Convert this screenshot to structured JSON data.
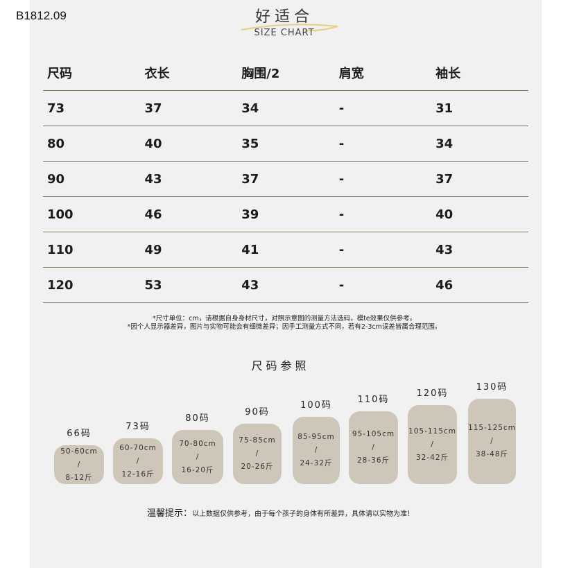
{
  "product_code": "B1812.09",
  "header": {
    "title_cn": "好适合",
    "title_en": "SIZE CHART",
    "accent_color": "#e8cf86"
  },
  "table": {
    "columns": [
      "尺码",
      "衣长",
      "胸围/2",
      "肩宽",
      "袖长"
    ],
    "rows": [
      [
        "73",
        "37",
        "34",
        "-",
        "31"
      ],
      [
        "80",
        "40",
        "35",
        "-",
        "34"
      ],
      [
        "90",
        "43",
        "37",
        "-",
        "37"
      ],
      [
        "100",
        "46",
        "39",
        "-",
        "40"
      ],
      [
        "110",
        "49",
        "41",
        "-",
        "43"
      ],
      [
        "120",
        "53",
        "43",
        "-",
        "46"
      ]
    ]
  },
  "notes": [
    "*尺寸单位：cm，请根据自身身材尺寸，对照示意图的测量方法选码，模te效果仅供参考。",
    "*因个人显示器差异，图片与实物可能会有细微差异；因手工测量方式不同，若有2-3cm误差皆属合理范围。"
  ],
  "reference": {
    "title": "尺码参照",
    "sizes": [
      {
        "label": "66码",
        "height": "50-60cm",
        "sep": "/",
        "weight": "8-12斤"
      },
      {
        "label": "73码",
        "height": "60-70cm",
        "sep": "/",
        "weight": "12-16斤"
      },
      {
        "label": "80码",
        "height": "70-80cm",
        "sep": "/",
        "weight": "16-20斤"
      },
      {
        "label": "90码",
        "height": "75-85cm",
        "sep": "/",
        "weight": "20-26斤"
      },
      {
        "label": "100码",
        "height": "85-95cm",
        "sep": "/",
        "weight": "24-32斤"
      },
      {
        "label": "110码",
        "height": "95-105cm",
        "sep": "/",
        "weight": "28-36斤"
      },
      {
        "label": "120码",
        "height": "105-115cm",
        "sep": "/",
        "weight": "32-42斤"
      },
      {
        "label": "130码",
        "height": "115-125cm",
        "sep": "/",
        "weight": "38-48斤"
      }
    ]
  },
  "tip": {
    "label": "温馨提示：",
    "text": "以上数据仅供参考，由于每个孩子的身体有所差异，具体请以实物为准！"
  }
}
